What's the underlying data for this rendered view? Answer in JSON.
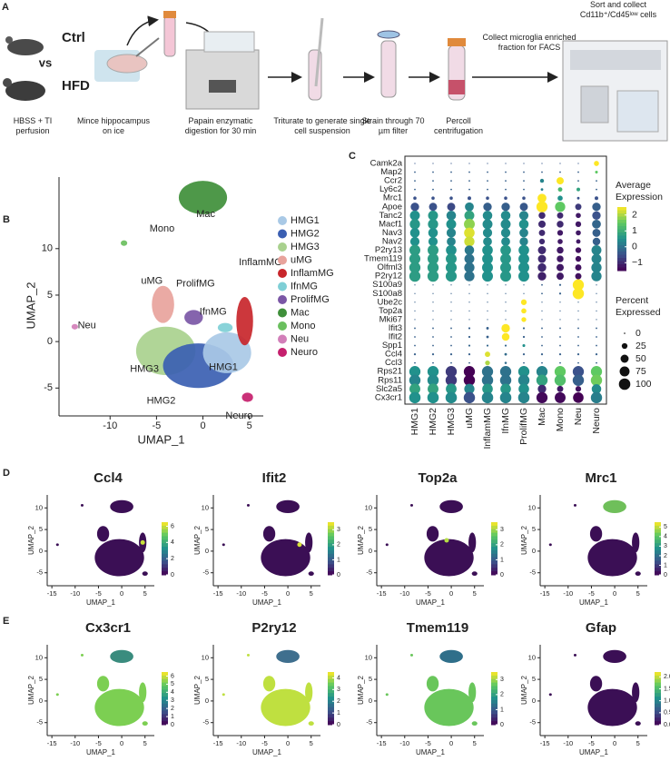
{
  "panel_labels": [
    "A",
    "B",
    "C",
    "D",
    "E"
  ],
  "workflow": {
    "group_labels": [
      "Ctrl",
      "vs",
      "HFD"
    ],
    "steps": [
      "HBSS + TI perfusion",
      "Mince hippocampus on ice",
      "Papain enzymatic digestion for 30 min",
      "Triturate to generate single cell suspension",
      "Strain through 70 µm filter",
      "Percoll centrifugation",
      "Collect microglia enriched fraction for FACS",
      "Sort and collect Cd11b⁺/Cd45ˡᵒʷ cells"
    ]
  },
  "chart_data": [
    {
      "type": "umap",
      "x_label": "UMAP_1",
      "y_label": "UMAP_2",
      "xlim": [
        -15.5,
        6.5
      ],
      "ylim": [
        -8,
        17.7
      ],
      "xticks": [
        -10,
        -5,
        0,
        5
      ],
      "yticks": [
        -5,
        0,
        5,
        10
      ],
      "clusters": [
        {
          "name": "HMG1",
          "color": "#a9c9e6"
        },
        {
          "name": "HMG2",
          "color": "#3b5fb2"
        },
        {
          "name": "HMG3",
          "color": "#a9d18e"
        },
        {
          "name": "uMG",
          "color": "#e8a39c"
        },
        {
          "name": "InflamMG",
          "color": "#c8262b"
        },
        {
          "name": "IfnMG",
          "color": "#7fcfd6"
        },
        {
          "name": "ProlifMG",
          "color": "#7b57a6"
        },
        {
          "name": "Mac",
          "color": "#3f8f3a"
        },
        {
          "name": "Mono",
          "color": "#6abf5e"
        },
        {
          "name": "Neu",
          "color": "#d27fb9"
        },
        {
          "name": "Neuro",
          "color": "#c51f6d"
        }
      ]
    },
    {
      "type": "dotplot",
      "genes": [
        "Camk2a",
        "Map2",
        "Ccr2",
        "Ly6c2",
        "Mrc1",
        "Apoe",
        "Tanc2",
        "Macf1",
        "Nav3",
        "Nav2",
        "P2ry13",
        "Tmem119",
        "Olfml3",
        "P2ry12",
        "S100a9",
        "S100a8",
        "Ube2c",
        "Top2a",
        "Mki67",
        "Ifit3",
        "Ifit2",
        "Spp1",
        "Ccl4",
        "Ccl3",
        "Rps21",
        "Rps11",
        "Slc2a5",
        "Cx3cr1"
      ],
      "categories": [
        "HMG1",
        "HMG2",
        "HMG3",
        "uMG",
        "InflamMG",
        "IfnMG",
        "ProlifMG",
        "Mac",
        "Mono",
        "Neu",
        "Neuro"
      ],
      "expression": [
        [
          -0.4,
          -0.4,
          -0.4,
          -0.4,
          -0.4,
          -0.4,
          -0.4,
          -0.4,
          -0.4,
          -0.4,
          2.5
        ],
        [
          -0.3,
          -0.3,
          -0.3,
          -0.3,
          -0.3,
          -0.3,
          -0.3,
          -0.3,
          -0.3,
          -0.3,
          1.5
        ],
        [
          -0.3,
          -0.3,
          -0.3,
          -0.3,
          -0.3,
          -0.3,
          -0.3,
          0.3,
          2.5,
          -0.3,
          -0.3
        ],
        [
          -0.3,
          -0.3,
          -0.3,
          -0.3,
          -0.3,
          -0.3,
          -0.3,
          0.2,
          1.2,
          0.8,
          -0.3
        ],
        [
          -0.5,
          -0.5,
          -0.5,
          -0.5,
          -0.5,
          -0.5,
          -0.5,
          2.5,
          0.5,
          -0.5,
          -0.5
        ],
        [
          -0.5,
          -0.5,
          -0.6,
          0.3,
          -0.3,
          -0.3,
          -0.4,
          2.5,
          1.5,
          -0.8,
          -0.3
        ],
        [
          0.5,
          0.6,
          0.3,
          0.8,
          0.4,
          0.4,
          0.3,
          -1,
          -1,
          -1.2,
          -0.5
        ],
        [
          0.6,
          0.6,
          0.5,
          1.8,
          0.4,
          0.4,
          0.5,
          -1,
          -1,
          -1.2,
          -0.2
        ],
        [
          0.5,
          0.5,
          0.3,
          2.3,
          0.4,
          0.4,
          0.3,
          -1,
          -1.2,
          -1.2,
          -0.3
        ],
        [
          0.5,
          0.5,
          0.3,
          2.2,
          0.4,
          0.4,
          0.3,
          -1,
          -1.2,
          -1.2,
          -0.3
        ],
        [
          0.7,
          0.7,
          0.5,
          0.1,
          0.5,
          0.6,
          0.5,
          -1,
          -1.2,
          -1.3,
          0.3
        ],
        [
          0.7,
          0.7,
          0.6,
          0,
          0.5,
          0.6,
          0.5,
          -1,
          -1.2,
          -1.3,
          0.3
        ],
        [
          0.7,
          0.7,
          0.6,
          0,
          0.5,
          0.6,
          0.5,
          -1,
          -1.2,
          -1.3,
          0.3
        ],
        [
          0.7,
          0.7,
          0.6,
          0,
          0.5,
          0.6,
          0.5,
          -1.1,
          -1.2,
          -1.3,
          0.3
        ],
        [
          -0.3,
          -0.3,
          -0.3,
          -0.3,
          -0.3,
          -0.3,
          -0.3,
          -0.3,
          -0.3,
          2.5,
          -0.3
        ],
        [
          -0.3,
          -0.3,
          -0.3,
          -0.3,
          -0.3,
          -0.3,
          -0.3,
          -0.3,
          -0.3,
          2.5,
          -0.3
        ],
        [
          -0.3,
          -0.3,
          -0.3,
          -0.3,
          -0.3,
          -0.3,
          2.5,
          -0.3,
          -0.3,
          -0.3,
          -0.3
        ],
        [
          -0.3,
          -0.3,
          -0.3,
          -0.3,
          -0.3,
          -0.3,
          2.5,
          -0.3,
          -0.3,
          -0.3,
          -0.3
        ],
        [
          -0.3,
          -0.3,
          -0.3,
          -0.3,
          -0.3,
          -0.3,
          2.5,
          -0.3,
          -0.3,
          -0.3,
          -0.3
        ],
        [
          -0.3,
          -0.3,
          -0.3,
          -0.3,
          -0.3,
          2.5,
          -0.3,
          -0.3,
          -0.3,
          -0.3,
          -0.3
        ],
        [
          -0.3,
          -0.3,
          -0.3,
          -0.3,
          -0.3,
          2.5,
          -0.3,
          -0.3,
          -0.3,
          -0.3,
          -0.3
        ],
        [
          -0.3,
          -0.3,
          -0.3,
          -0.2,
          -0.2,
          -0.2,
          0.5,
          -0.3,
          -0.3,
          -0.3,
          -0.3
        ],
        [
          -0.3,
          -0.3,
          -0.3,
          -0.3,
          2.3,
          -0.1,
          -0.3,
          -0.3,
          -0.3,
          -0.3,
          -0.3
        ],
        [
          -0.3,
          -0.3,
          -0.3,
          -0.3,
          2,
          -0.1,
          -0.3,
          -0.3,
          -0.3,
          -0.3,
          -0.3
        ],
        [
          0.5,
          0.5,
          -0.8,
          -1.5,
          0,
          0,
          0.5,
          0.3,
          1.5,
          -0.5,
          1.5
        ],
        [
          0.3,
          0.4,
          -0.8,
          -1.5,
          0,
          0,
          0.3,
          0.8,
          1.3,
          -0.3,
          1.6
        ],
        [
          0.8,
          0.8,
          0.6,
          0.3,
          0.6,
          0.6,
          0.5,
          -1,
          -1.2,
          -1.3,
          0.4
        ],
        [
          0.5,
          0.5,
          0.4,
          -0.5,
          0.3,
          0.3,
          0.3,
          -1.4,
          -1.4,
          -1.5,
          0.2
        ]
      ],
      "percent": [
        [
          1,
          1,
          1,
          1,
          1,
          1,
          1,
          1,
          1,
          1,
          20
        ],
        [
          2,
          2,
          2,
          2,
          2,
          2,
          2,
          2,
          2,
          2,
          6
        ],
        [
          2,
          2,
          2,
          2,
          2,
          2,
          2,
          12,
          40,
          2,
          2
        ],
        [
          2,
          2,
          2,
          2,
          2,
          2,
          2,
          5,
          15,
          10,
          2
        ],
        [
          8,
          8,
          8,
          10,
          8,
          8,
          8,
          60,
          20,
          5,
          10
        ],
        [
          55,
          50,
          50,
          60,
          55,
          55,
          50,
          95,
          80,
          30,
          55
        ],
        [
          75,
          75,
          70,
          75,
          70,
          70,
          65,
          35,
          30,
          20,
          55
        ],
        [
          80,
          80,
          75,
          90,
          75,
          75,
          70,
          40,
          35,
          25,
          60
        ],
        [
          70,
          70,
          65,
          85,
          65,
          65,
          60,
          30,
          25,
          20,
          50
        ],
        [
          65,
          65,
          60,
          80,
          60,
          60,
          55,
          25,
          20,
          15,
          45
        ],
        [
          90,
          90,
          85,
          70,
          85,
          85,
          85,
          50,
          35,
          25,
          75
        ],
        [
          92,
          92,
          90,
          75,
          88,
          88,
          88,
          50,
          35,
          25,
          75
        ],
        [
          95,
          95,
          92,
          80,
          90,
          90,
          90,
          55,
          40,
          30,
          80
        ],
        [
          95,
          95,
          92,
          80,
          90,
          90,
          90,
          55,
          40,
          30,
          80
        ],
        [
          1,
          1,
          1,
          1,
          1,
          1,
          1,
          2,
          3,
          95,
          1
        ],
        [
          1,
          1,
          1,
          1,
          1,
          1,
          1,
          2,
          3,
          98,
          1
        ],
        [
          1,
          1,
          1,
          1,
          1,
          1,
          25,
          1,
          1,
          1,
          1
        ],
        [
          1,
          1,
          1,
          1,
          1,
          1,
          20,
          1,
          1,
          1,
          1
        ],
        [
          1,
          1,
          1,
          1,
          1,
          1,
          18,
          1,
          1,
          1,
          1
        ],
        [
          2,
          2,
          2,
          3,
          5,
          55,
          3,
          2,
          2,
          2,
          2
        ],
        [
          2,
          2,
          2,
          3,
          5,
          45,
          3,
          2,
          2,
          2,
          2
        ],
        [
          2,
          2,
          2,
          3,
          3,
          3,
          6,
          2,
          2,
          2,
          2
        ],
        [
          3,
          3,
          3,
          3,
          22,
          5,
          3,
          3,
          3,
          3,
          3
        ],
        [
          2,
          2,
          2,
          2,
          18,
          4,
          2,
          2,
          2,
          2,
          2
        ],
        [
          95,
          95,
          95,
          95,
          95,
          95,
          95,
          95,
          95,
          95,
          95
        ],
        [
          97,
          97,
          97,
          97,
          97,
          97,
          97,
          97,
          97,
          97,
          97
        ],
        [
          90,
          90,
          88,
          80,
          85,
          85,
          85,
          55,
          30,
          25,
          70
        ],
        [
          99,
          99,
          99,
          98,
          99,
          99,
          99,
          95,
          90,
          85,
          97
        ]
      ],
      "color_legend_title": "Average Expression",
      "color_lim": [
        -1.5,
        2.5
      ],
      "color_ticks": [
        2,
        1,
        0,
        {
          "value": -1,
          "label": "−1"
        }
      ],
      "size_legend_title": "Percent Expressed",
      "size_ticks": [
        0,
        25,
        50,
        75,
        100
      ]
    },
    {
      "type": "feature",
      "title": "Ccl4",
      "x_label": "UMAP_1",
      "y_label": "UMAP_2",
      "xlim": [
        -16,
        7
      ],
      "ylim": [
        -8,
        13
      ],
      "xticks": [
        -15,
        -10,
        -5,
        0,
        5
      ],
      "yticks": [
        -5,
        0,
        5,
        10
      ],
      "color_lim": [
        0,
        6.5
      ],
      "color_ticks": [
        0,
        2,
        4,
        6
      ]
    },
    {
      "type": "feature",
      "title": "Ifit2",
      "x_label": "UMAP_1",
      "y_label": "UMAP_2",
      "xlim": [
        -16,
        7
      ],
      "ylim": [
        -8,
        13
      ],
      "xticks": [
        -15,
        -10,
        -5,
        0,
        5
      ],
      "yticks": [
        -5,
        0,
        5,
        10
      ],
      "color_lim": [
        0,
        3.5
      ],
      "color_ticks": [
        0,
        1,
        2,
        3
      ]
    },
    {
      "type": "feature",
      "title": "Top2a",
      "x_label": "UMAP_1",
      "y_label": "UMAP_2",
      "xlim": [
        -16,
        7
      ],
      "ylim": [
        -8,
        13
      ],
      "xticks": [
        -15,
        -10,
        -5,
        0,
        5
      ],
      "yticks": [
        -5,
        0,
        5,
        10
      ],
      "color_lim": [
        0,
        3.5
      ],
      "color_ticks": [
        0,
        1,
        2,
        3
      ]
    },
    {
      "type": "feature",
      "title": "Mrc1",
      "x_label": "UMAP_1",
      "y_label": "UMAP_2",
      "xlim": [
        -16,
        7
      ],
      "ylim": [
        -8,
        13
      ],
      "xticks": [
        -15,
        -10,
        -5,
        0,
        5
      ],
      "yticks": [
        -5,
        0,
        5,
        10
      ],
      "color_lim": [
        0,
        5.5
      ],
      "color_ticks": [
        0,
        1,
        2,
        3,
        4,
        5
      ]
    },
    {
      "type": "feature",
      "title": "Cx3cr1",
      "x_label": "UMAP_1",
      "y_label": "UMAP_2",
      "xlim": [
        -16,
        7
      ],
      "ylim": [
        -8,
        13
      ],
      "xticks": [
        -15,
        -10,
        -5,
        0,
        5
      ],
      "yticks": [
        -5,
        0,
        5,
        10
      ],
      "color_lim": [
        0,
        6.5
      ],
      "color_ticks": [
        0,
        1,
        2,
        3,
        4,
        5,
        6
      ]
    },
    {
      "type": "feature",
      "title": "P2ry12",
      "x_label": "UMAP_1",
      "y_label": "UMAP_2",
      "xlim": [
        -16,
        7
      ],
      "ylim": [
        -8,
        13
      ],
      "xticks": [
        -15,
        -10,
        -5,
        0,
        5
      ],
      "yticks": [
        -5,
        0,
        5,
        10
      ],
      "color_lim": [
        0,
        4.5
      ],
      "color_ticks": [
        0,
        1,
        2,
        3,
        4
      ]
    },
    {
      "type": "feature",
      "title": "Tmem119",
      "x_label": "UMAP_1",
      "y_label": "UMAP_2",
      "xlim": [
        -16,
        7
      ],
      "ylim": [
        -8,
        13
      ],
      "xticks": [
        -15,
        -10,
        -5,
        0,
        5
      ],
      "yticks": [
        -5,
        0,
        5,
        10
      ],
      "color_lim": [
        0,
        3.5
      ],
      "color_ticks": [
        0,
        1,
        2,
        3
      ]
    },
    {
      "type": "feature",
      "title": "Gfap",
      "x_label": "UMAP_1",
      "y_label": "UMAP_2",
      "xlim": [
        -16,
        7
      ],
      "ylim": [
        -8,
        13
      ],
      "xticks": [
        -15,
        -10,
        -5,
        0,
        5
      ],
      "yticks": [
        -5,
        0,
        5,
        10
      ],
      "color_lim": [
        0,
        2.2
      ],
      "color_ticks": [
        {
          "value": 0,
          "label": "0.0"
        },
        {
          "value": 0.5,
          "label": "0.5"
        },
        {
          "value": 1,
          "label": "1.0"
        },
        {
          "value": 1.5,
          "label": "1.5"
        },
        {
          "value": 2,
          "label": "2.0"
        }
      ]
    }
  ]
}
